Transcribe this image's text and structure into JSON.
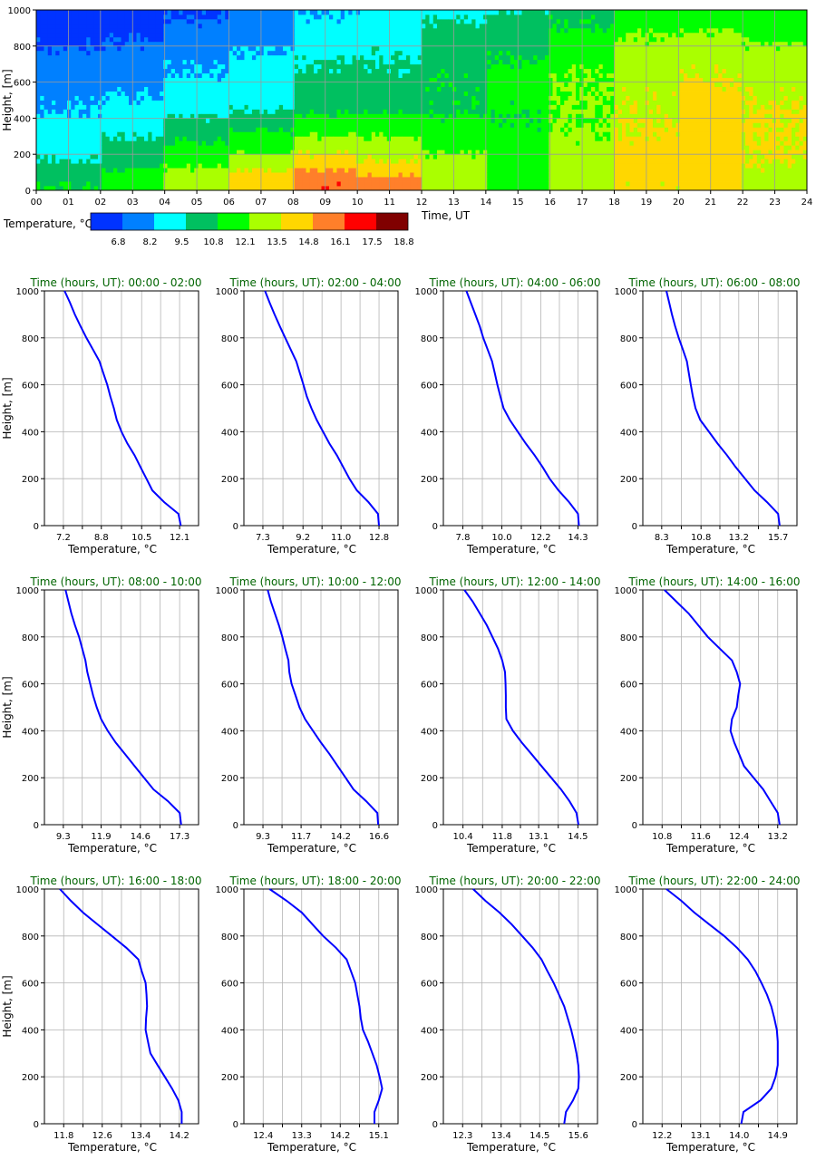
{
  "heatmap": {
    "ylabel": "Height, [m]",
    "xlabel": "Time, UT",
    "x_ticks": [
      "00",
      "01",
      "02",
      "03",
      "04",
      "05",
      "06",
      "07",
      "08",
      "09",
      "10",
      "11",
      "12",
      "13",
      "14",
      "15",
      "16",
      "17",
      "18",
      "19",
      "20",
      "21",
      "22",
      "23",
      "24"
    ],
    "y_ticks": [
      "0",
      "200",
      "400",
      "600",
      "800",
      "1000"
    ],
    "colorbar_label": "Temperature, °C",
    "colorbar_ticks": [
      "6.8",
      "8.2",
      "9.5",
      "10.8",
      "12.1",
      "13.5",
      "14.8",
      "16.1",
      "17.5",
      "18.8"
    ]
  },
  "colors": {
    "levels": [
      "#0033ff",
      "#0080ff",
      "#00ffff",
      "#00c060",
      "#00ff00",
      "#aaff00",
      "#ffd700",
      "#ff7f2a",
      "#ff0000",
      "#800000"
    ],
    "profile_line": "#0000ff",
    "title_green": "#006400"
  },
  "chart_data": {
    "type": "heatmap",
    "x_range": [
      0,
      24
    ],
    "y_range": [
      0,
      1000
    ],
    "level_thresholds": [
      6.8,
      8.2,
      9.5,
      10.8,
      12.1,
      13.5,
      14.8,
      16.1,
      17.5,
      18.8
    ],
    "profile_heights": [
      0,
      50,
      100,
      150,
      200,
      250,
      300,
      350,
      400,
      450,
      500,
      550,
      600,
      650,
      700,
      750,
      800,
      850,
      900,
      950,
      1000
    ],
    "profiles": [
      {
        "title": "Time (hours, UT): 00:00 - 02:00",
        "xticks": [
          "7.2",
          "8.8",
          "10.5",
          "12.1"
        ],
        "xlim": [
          6.4,
          12.9
        ],
        "temps": [
          12.15,
          12.05,
          11.45,
          10.95,
          10.7,
          10.45,
          10.2,
          9.9,
          9.65,
          9.45,
          9.33,
          9.18,
          9.05,
          8.88,
          8.72,
          8.45,
          8.17,
          7.92,
          7.68,
          7.48,
          7.25
        ]
      },
      {
        "title": "Time (hours, UT): 02:00 - 04:00",
        "xticks": [
          "7.3",
          "9.2",
          "11.0",
          "12.8"
        ],
        "xlim": [
          6.4,
          13.7
        ],
        "temps": [
          12.8,
          12.75,
          12.3,
          11.75,
          11.4,
          11.1,
          10.8,
          10.45,
          10.15,
          9.85,
          9.6,
          9.38,
          9.22,
          9.05,
          8.88,
          8.62,
          8.36,
          8.1,
          7.85,
          7.62,
          7.4
        ]
      },
      {
        "title": "Time (hours, UT): 04:00 - 06:00",
        "xticks": [
          "7.8",
          "10.0",
          "12.2",
          "14.3"
        ],
        "xlim": [
          6.7,
          15.4
        ],
        "temps": [
          14.35,
          14.3,
          13.8,
          13.2,
          12.7,
          12.3,
          11.85,
          11.35,
          10.9,
          10.45,
          10.1,
          9.92,
          9.75,
          9.6,
          9.45,
          9.2,
          8.95,
          8.75,
          8.5,
          8.25,
          8.0
        ]
      },
      {
        "title": "Time (hours, UT): 06:00 - 08:00",
        "xticks": [
          "8.3",
          "10.8",
          "13.2",
          "15.7"
        ],
        "xlim": [
          7.1,
          16.9
        ],
        "temps": [
          15.8,
          15.7,
          15.0,
          14.2,
          13.6,
          13.0,
          12.45,
          11.85,
          11.3,
          10.75,
          10.45,
          10.28,
          10.15,
          10.02,
          9.9,
          9.65,
          9.38,
          9.15,
          8.95,
          8.78,
          8.6
        ]
      },
      {
        "title": "Time (hours, UT): 08:00 - 10:00",
        "xticks": [
          "9.3",
          "11.9",
          "14.6",
          "17.3"
        ],
        "xlim": [
          8.0,
          18.6
        ],
        "temps": [
          17.4,
          17.3,
          16.5,
          15.5,
          14.85,
          14.2,
          13.55,
          12.9,
          12.35,
          11.9,
          11.6,
          11.35,
          11.15,
          10.95,
          10.82,
          10.6,
          10.38,
          10.1,
          9.85,
          9.65,
          9.45
        ]
      },
      {
        "title": "Time (hours, UT): 10:00 - 12:00",
        "xticks": [
          "9.3",
          "11.7",
          "14.2",
          "16.6"
        ],
        "xlim": [
          8.1,
          17.8
        ],
        "temps": [
          16.55,
          16.5,
          15.8,
          15.0,
          14.5,
          14.0,
          13.5,
          12.95,
          12.45,
          11.95,
          11.6,
          11.35,
          11.1,
          10.96,
          10.9,
          10.7,
          10.52,
          10.3,
          10.05,
          9.8,
          9.6
        ]
      },
      {
        "title": "Time (hours, UT): 12:00 - 14:00",
        "xticks": [
          "10.4",
          "11.8",
          "13.1",
          "14.5"
        ],
        "xlim": [
          9.7,
          15.2
        ],
        "temps": [
          14.52,
          14.45,
          14.2,
          13.9,
          13.55,
          13.2,
          12.85,
          12.5,
          12.18,
          11.95,
          11.93,
          11.93,
          11.92,
          11.9,
          11.8,
          11.65,
          11.45,
          11.25,
          11.0,
          10.75,
          10.45
        ]
      },
      {
        "title": "Time (hours, UT): 14:00 - 16:00",
        "xticks": [
          "10.8",
          "11.6",
          "12.4",
          "13.2"
        ],
        "xlim": [
          10.4,
          13.6
        ],
        "temps": [
          13.24,
          13.2,
          13.05,
          12.9,
          12.7,
          12.5,
          12.4,
          12.3,
          12.22,
          12.25,
          12.35,
          12.38,
          12.42,
          12.35,
          12.25,
          12.0,
          11.75,
          11.55,
          11.35,
          11.1,
          10.85
        ]
      },
      {
        "title": "Time (hours, UT): 16:00 - 18:00",
        "xticks": [
          "11.8",
          "12.6",
          "13.4",
          "14.2"
        ],
        "xlim": [
          11.4,
          14.6
        ],
        "temps": [
          14.25,
          14.25,
          14.18,
          14.05,
          13.9,
          13.75,
          13.6,
          13.55,
          13.5,
          13.51,
          13.53,
          13.52,
          13.5,
          13.42,
          13.35,
          13.1,
          12.8,
          12.5,
          12.2,
          11.95,
          11.72
        ]
      },
      {
        "title": "Time (hours, UT): 18:00 - 20:00",
        "xticks": [
          "12.4",
          "13.3",
          "14.2",
          "15.1"
        ],
        "xlim": [
          11.95,
          15.55
        ],
        "temps": [
          15.0,
          15.0,
          15.1,
          15.18,
          15.12,
          15.05,
          14.95,
          14.85,
          14.73,
          14.68,
          14.65,
          14.6,
          14.55,
          14.45,
          14.35,
          14.1,
          13.8,
          13.55,
          13.3,
          12.95,
          12.55
        ]
      },
      {
        "title": "Time (hours, UT): 20:00 - 22:00",
        "xticks": [
          "12.3",
          "13.4",
          "14.5",
          "15.6"
        ],
        "xlim": [
          11.75,
          16.15
        ],
        "temps": [
          15.2,
          15.25,
          15.45,
          15.6,
          15.62,
          15.6,
          15.55,
          15.48,
          15.4,
          15.3,
          15.2,
          15.05,
          14.9,
          14.72,
          14.55,
          14.3,
          14.0,
          13.7,
          13.35,
          12.95,
          12.6
        ]
      },
      {
        "title": "Time (hours, UT): 22:00 - 24:00",
        "xticks": [
          "12.2",
          "13.1",
          "14.0",
          "14.9"
        ],
        "xlim": [
          11.75,
          15.35
        ],
        "temps": [
          14.05,
          14.1,
          14.5,
          14.75,
          14.85,
          14.9,
          14.9,
          14.9,
          14.88,
          14.82,
          14.75,
          14.65,
          14.52,
          14.38,
          14.2,
          13.95,
          13.65,
          13.3,
          12.95,
          12.65,
          12.3
        ]
      }
    ]
  },
  "profile_ylabel": "Height, [m]",
  "profile_xlabel": "Temperature, °C",
  "profile_y_ticks": [
    "0",
    "200",
    "400",
    "600",
    "800",
    "1000"
  ]
}
